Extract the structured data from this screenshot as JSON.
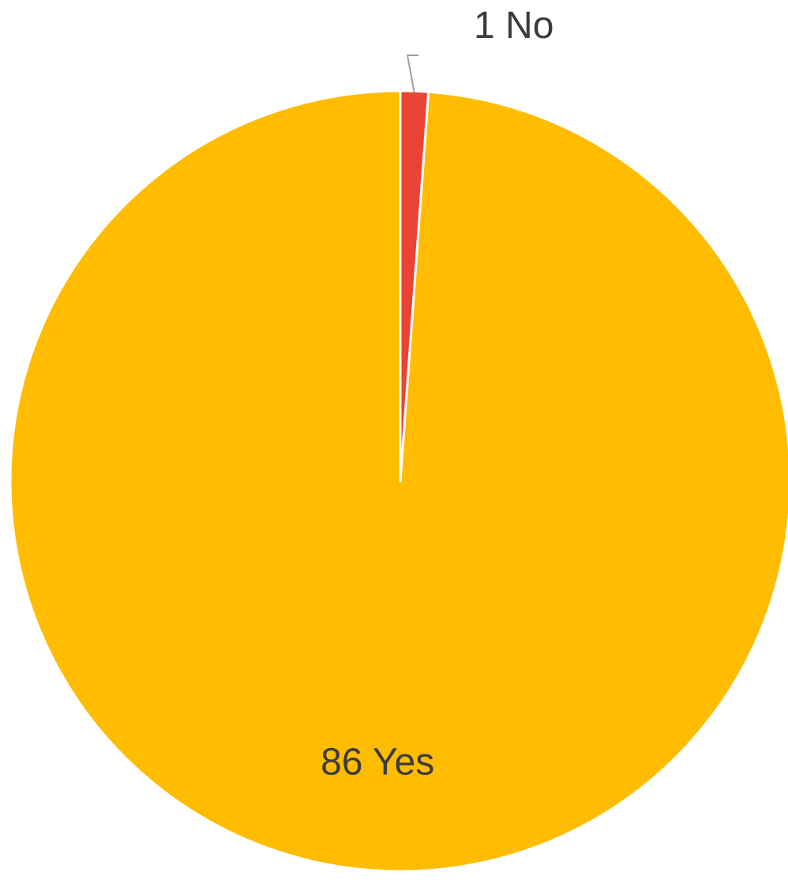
{
  "chart_data": {
    "type": "pie",
    "title": "",
    "start_angle_deg": 0,
    "direction": "counterclockwise",
    "legend": "none",
    "slices": [
      {
        "label": "Yes",
        "value": 86,
        "color": "#FFBC00",
        "display": "86 Yes",
        "label_position": "inside"
      },
      {
        "label": "No",
        "value": 1,
        "color": "#EA4335",
        "display": "1 No",
        "label_position": "outside"
      }
    ]
  }
}
